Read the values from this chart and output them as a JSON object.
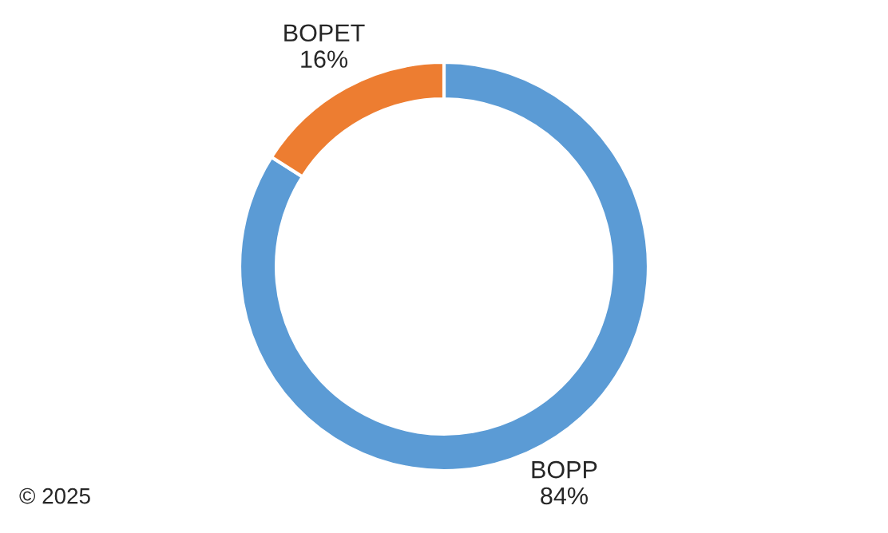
{
  "chart_data": {
    "type": "donut",
    "categories": [
      "BOPP",
      "BOPET"
    ],
    "values": [
      84,
      16
    ],
    "value_labels": [
      "84%",
      "16%"
    ],
    "colors": [
      "#5b9bd5",
      "#ed7d31"
    ],
    "annotations": [
      "© 2025"
    ]
  }
}
